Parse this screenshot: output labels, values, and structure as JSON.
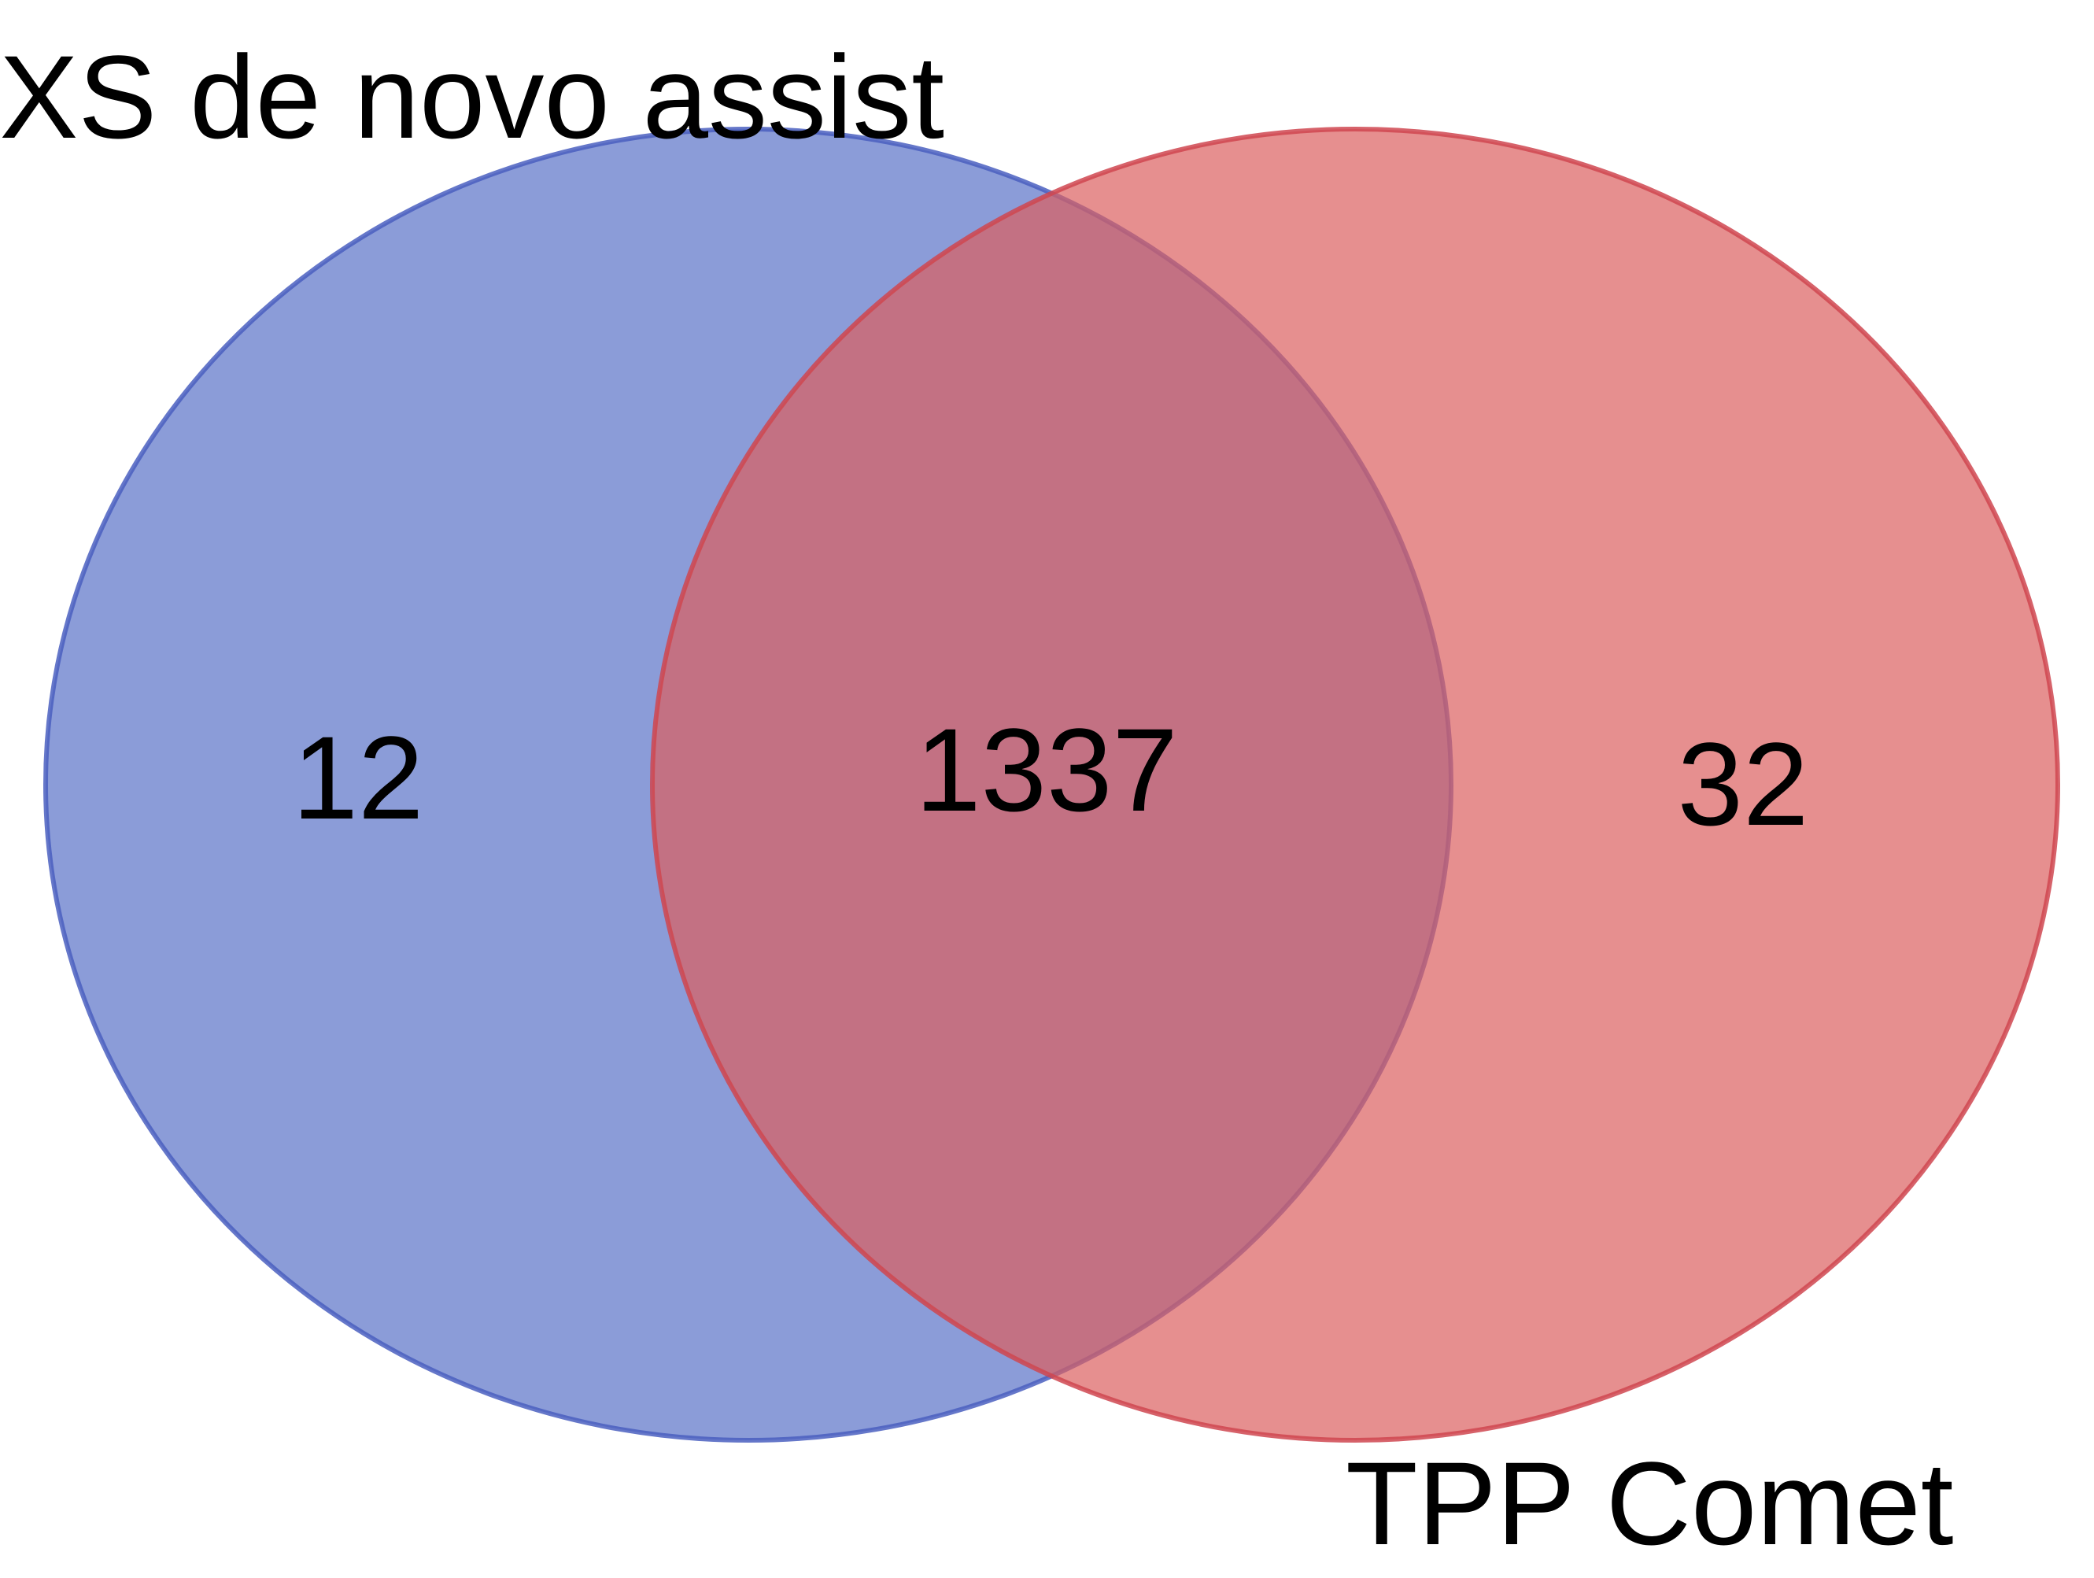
{
  "diagram": {
    "type": "venn",
    "sets": [
      {
        "id": "A",
        "label": "XS de novo assist",
        "color": "#5a72c8",
        "edge": "#4a5fbf"
      },
      {
        "id": "B",
        "label": "TPP Comet",
        "color": "#db5f60",
        "edge": "#cf4650"
      }
    ],
    "regions": {
      "only_a": "12",
      "both": "1337",
      "only_b": "32"
    }
  }
}
